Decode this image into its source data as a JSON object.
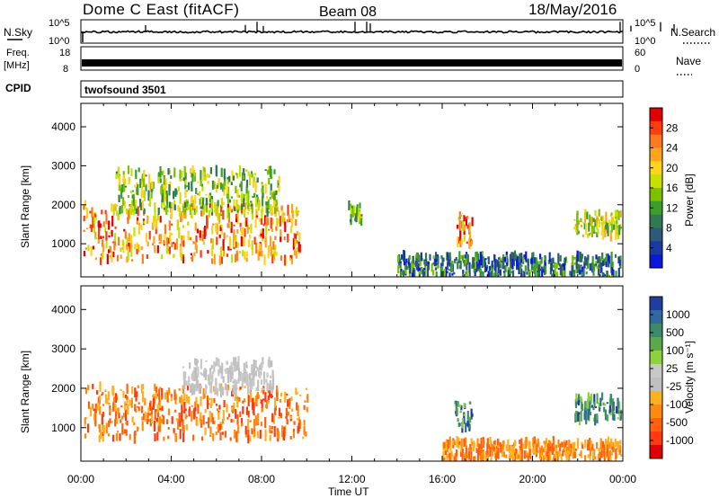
{
  "header": {
    "title": "Dome C East (fitACF)",
    "beam": "Beam 08",
    "date": "18/May/2016"
  },
  "strips": {
    "nsky": {
      "label": "N.Sky",
      "top": "10^5",
      "bottom": "10^0"
    },
    "nsearch": {
      "label": "N.Search",
      "top": "10^5",
      "bottom": "10^0"
    },
    "freq": {
      "label_line1": "Freq.",
      "label_line2": "[MHz]",
      "top": "18",
      "bottom": "8"
    },
    "nave": {
      "label": "Nave",
      "top": "60",
      "bottom": "0"
    },
    "cpid": {
      "label": "CPID",
      "value": "twofsound 3501"
    }
  },
  "chart_data": [
    {
      "type": "heatmap",
      "panel": "power",
      "ylabel": "Slant Range [km]",
      "yticks": [
        1000,
        2000,
        3000,
        4000
      ],
      "xticks": [
        "00:00",
        "04:00",
        "08:00",
        "12:00",
        "16:00",
        "20:00",
        "00:00"
      ],
      "colorbar": {
        "label": "Power [dB]",
        "ticks": [
          "28",
          "24",
          "20",
          "16",
          "12",
          "8",
          "4"
        ],
        "colors": [
          "#e00000",
          "#ff3b10",
          "#ff7a1e",
          "#ffa31f",
          "#ffd21e",
          "#c6e000",
          "#7cc000",
          "#3b9e2a",
          "#2f7a52",
          "#2e5a7a",
          "#1a3aa0",
          "#0a18d8"
        ]
      },
      "regions": [
        {
          "t0": 0.1,
          "t1": 9.7,
          "r0": 550,
          "r1": 2050,
          "level": "strong"
        },
        {
          "t0": 1.5,
          "t1": 8.8,
          "r0": 1800,
          "r1": 2900,
          "level": "weak"
        },
        {
          "t0": 16.6,
          "t1": 17.3,
          "r0": 1000,
          "r1": 1750,
          "level": "strong"
        },
        {
          "t0": 21.8,
          "t1": 23.9,
          "r0": 1200,
          "r1": 1800,
          "level": "medium"
        },
        {
          "t0": 14.0,
          "t1": 23.9,
          "r0": 180,
          "r1": 700,
          "level": "low"
        },
        {
          "t0": 11.8,
          "t1": 12.4,
          "r0": 1500,
          "r1": 2000,
          "level": "weak"
        }
      ]
    },
    {
      "type": "heatmap",
      "panel": "velocity",
      "ylabel": "Slant Range [km]",
      "xlabel": "Time UT",
      "yticks": [
        1000,
        2000,
        3000,
        4000
      ],
      "xticks": [
        "00:00",
        "04:00",
        "08:00",
        "12:00",
        "16:00",
        "20:00",
        "00:00"
      ],
      "colorbar": {
        "label": "Velocity [m s⁻¹]",
        "ticks": [
          "1000",
          "500",
          "100",
          "25",
          "-25",
          "-100",
          "-500",
          "-1000"
        ],
        "colors": [
          "#1f3fa0",
          "#2e6a9e",
          "#3d8a6a",
          "#59a84a",
          "#8fd040",
          "#c8c8c8",
          "#c0c0c0",
          "#ffb020",
          "#ff8a10",
          "#ff6010",
          "#ff3a10",
          "#e00000"
        ]
      },
      "regions": [
        {
          "t0": 0.1,
          "t1": 10.0,
          "r0": 700,
          "r1": 2050,
          "level": "away"
        },
        {
          "t0": 4.5,
          "t1": 8.5,
          "r0": 1900,
          "r1": 2700,
          "level": "grey"
        },
        {
          "t0": 16.5,
          "t1": 17.3,
          "r0": 1000,
          "r1": 1750,
          "level": "toward"
        },
        {
          "t0": 21.8,
          "t1": 23.9,
          "r0": 1200,
          "r1": 1800,
          "level": "toward"
        },
        {
          "t0": 16.0,
          "t1": 23.9,
          "r0": 180,
          "r1": 650,
          "level": "away_light"
        }
      ]
    }
  ]
}
